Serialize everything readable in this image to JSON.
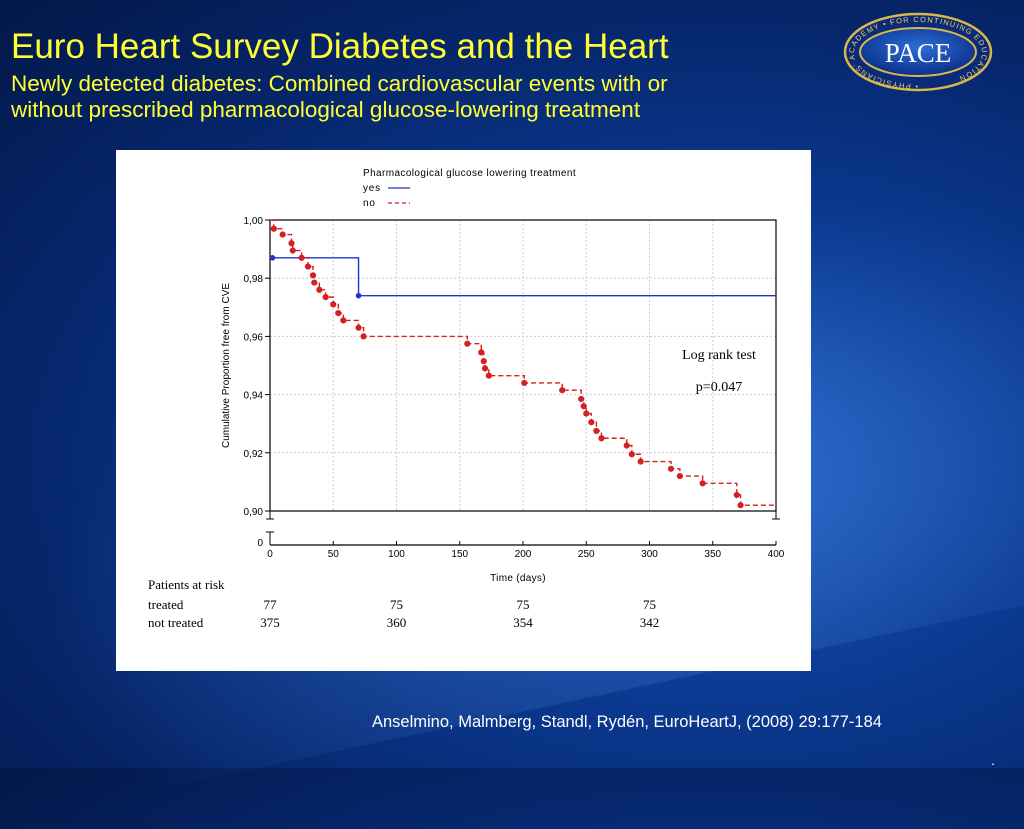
{
  "slide": {
    "title": "Euro Heart Survey Diabetes and the Heart",
    "subtitle_line1": "Newly detected diabetes: Combined cardiovascular events with or",
    "subtitle_line2": "without prescribed pharmacological glucose-lowering treatment",
    "citation": "Anselmino, Malmberg, Standl, Rydén, EuroHeartJ, (2008) 29:177-184",
    "trailing_mark": "."
  },
  "logo": {
    "text": "PACE",
    "ring_text": "• PHYSICIANS' ACADEMY • FOR CONTINUING EDUCATION"
  },
  "colors": {
    "title": "#ffff33",
    "series_yes": "#1f35c8",
    "series_no": "#d42020"
  },
  "chart_data": {
    "type": "line",
    "title": "",
    "xlabel": "Time (days)",
    "ylabel": "Cumulative Proportion free from CVE",
    "xlim": [
      0,
      400
    ],
    "ylim": [
      0.9,
      1.0
    ],
    "x_ticks": [
      "0",
      "50",
      "100",
      "150",
      "200",
      "250",
      "300",
      "350",
      "400"
    ],
    "y_ticks": [
      "0,90",
      "0,92",
      "0,94",
      "0,96",
      "0,98",
      "1,00"
    ],
    "y_zero_label": "0",
    "grid": true,
    "legend": {
      "title": "Pharmacological glucose lowering treatment",
      "position": "top",
      "entries": [
        "yes",
        "no"
      ]
    },
    "series": [
      {
        "name": "yes",
        "style": "solid step",
        "color": "#1f35c8",
        "points": [
          [
            0,
            0.987
          ],
          [
            70,
            0.987
          ],
          [
            70,
            0.974
          ],
          [
            400,
            0.974
          ]
        ],
        "events": [
          [
            2,
            0.987
          ],
          [
            70,
            0.974
          ]
        ]
      },
      {
        "name": "no",
        "style": "dashed step",
        "color": "#d42020",
        "points": [
          [
            0,
            1.0
          ],
          [
            3,
            0.997
          ],
          [
            10,
            0.995
          ],
          [
            17,
            0.992
          ],
          [
            18,
            0.9895
          ],
          [
            25,
            0.987
          ],
          [
            30,
            0.984
          ],
          [
            34,
            0.981
          ],
          [
            35,
            0.9785
          ],
          [
            39,
            0.976
          ],
          [
            44,
            0.9735
          ],
          [
            50,
            0.971
          ],
          [
            54,
            0.968
          ],
          [
            58,
            0.9655
          ],
          [
            70,
            0.963
          ],
          [
            74,
            0.96
          ],
          [
            156,
            0.9575
          ],
          [
            167,
            0.9545
          ],
          [
            169,
            0.9515
          ],
          [
            170,
            0.949
          ],
          [
            173,
            0.9465
          ],
          [
            201,
            0.944
          ],
          [
            231,
            0.9415
          ],
          [
            246,
            0.9385
          ],
          [
            248,
            0.936
          ],
          [
            250,
            0.9335
          ],
          [
            254,
            0.9305
          ],
          [
            258,
            0.9275
          ],
          [
            262,
            0.925
          ],
          [
            282,
            0.9225
          ],
          [
            286,
            0.9195
          ],
          [
            293,
            0.917
          ],
          [
            317,
            0.9145
          ],
          [
            324,
            0.912
          ],
          [
            342,
            0.9095
          ],
          [
            369,
            0.9055
          ],
          [
            372,
            0.902
          ],
          [
            400,
            0.902
          ]
        ]
      }
    ],
    "annotations": [
      "Log rank test",
      "p=0.047"
    ],
    "at_risk": {
      "header": "Patients at risk",
      "rows": [
        {
          "label": "treated",
          "values": [
            "77",
            "75",
            "75",
            "75"
          ]
        },
        {
          "label": "not treated",
          "values": [
            "375",
            "360",
            "354",
            "342"
          ]
        }
      ],
      "at_days": [
        0,
        100,
        200,
        300
      ]
    }
  }
}
